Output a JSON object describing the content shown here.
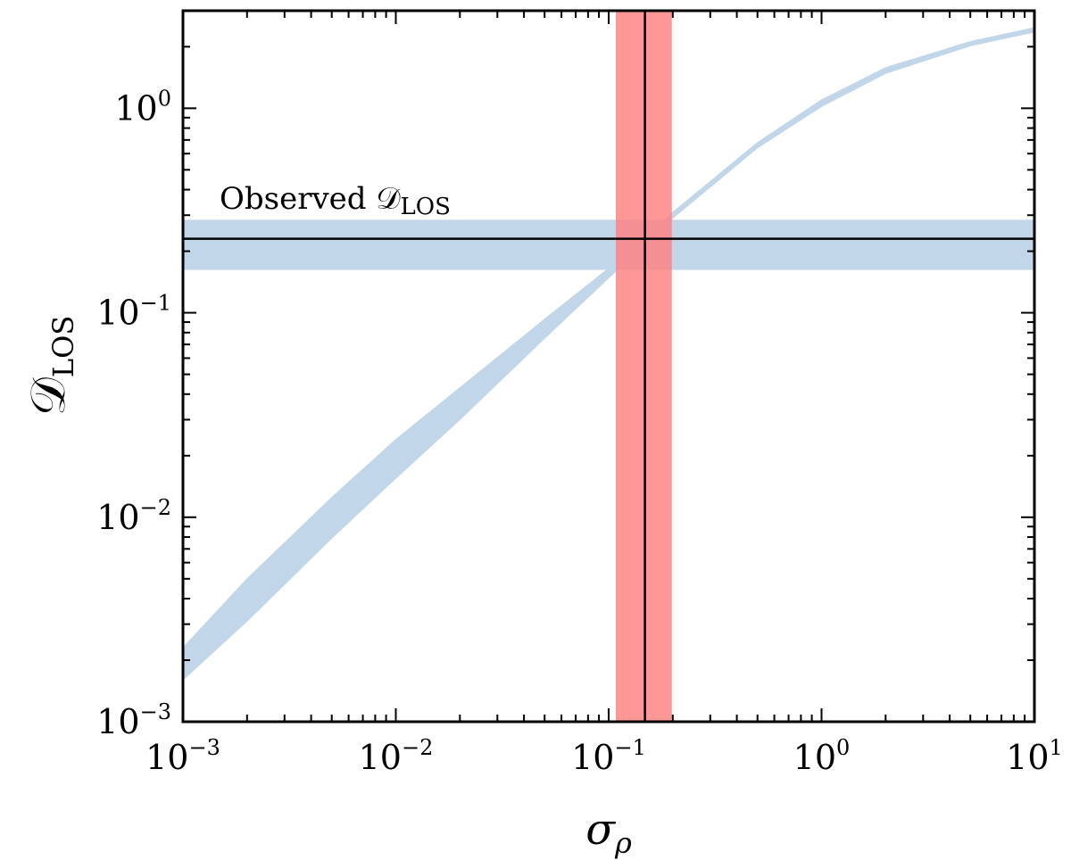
{
  "chart_data": {
    "type": "area",
    "title": "",
    "xlabel": "σ",
    "xlabel_sub": "ρ",
    "ylabel": "𝒟",
    "ylabel_sub": "LOS",
    "xscale": "log",
    "yscale": "log",
    "xlim": [
      0.001,
      10
    ],
    "ylim": [
      0.001,
      3
    ],
    "x_ticks": [
      {
        "value": 0.001,
        "base": "10",
        "exp": "−3"
      },
      {
        "value": 0.01,
        "base": "10",
        "exp": "−2"
      },
      {
        "value": 0.1,
        "base": "10",
        "exp": "−1"
      },
      {
        "value": 1,
        "base": "10",
        "exp": "0"
      },
      {
        "value": 10,
        "base": "10",
        "exp": "1"
      }
    ],
    "y_ticks": [
      {
        "value": 0.001,
        "base": "10",
        "exp": "−3"
      },
      {
        "value": 0.01,
        "base": "10",
        "exp": "−2"
      },
      {
        "value": 0.1,
        "base": "10",
        "exp": "−1"
      },
      {
        "value": 1,
        "base": "10",
        "exp": "0"
      }
    ],
    "grid": false,
    "series": [
      {
        "color": "#c2d6ea",
        "x": [
          0.001,
          0.002,
          0.005,
          0.01,
          0.02,
          0.05,
          0.1,
          0.2,
          0.5,
          1,
          2,
          5,
          10
        ],
        "lower": [
          0.0016,
          0.0031,
          0.0079,
          0.0155,
          0.03,
          0.075,
          0.148,
          0.29,
          0.64,
          1.02,
          1.48,
          2.02,
          2.36
        ],
        "upper": [
          0.0023,
          0.005,
          0.0125,
          0.024,
          0.043,
          0.093,
          0.165,
          0.31,
          0.68,
          1.1,
          1.58,
          2.12,
          2.48
        ]
      }
    ],
    "observed_band": {
      "label": "Observed 𝒟",
      "label_sub": "LOS",
      "value": 0.23,
      "lower": 0.162,
      "upper": 0.285,
      "color": "#c2d6ea"
    },
    "sigma_band": {
      "value": 0.148,
      "lower": 0.108,
      "upper": 0.198,
      "color": "#ff8080"
    }
  }
}
